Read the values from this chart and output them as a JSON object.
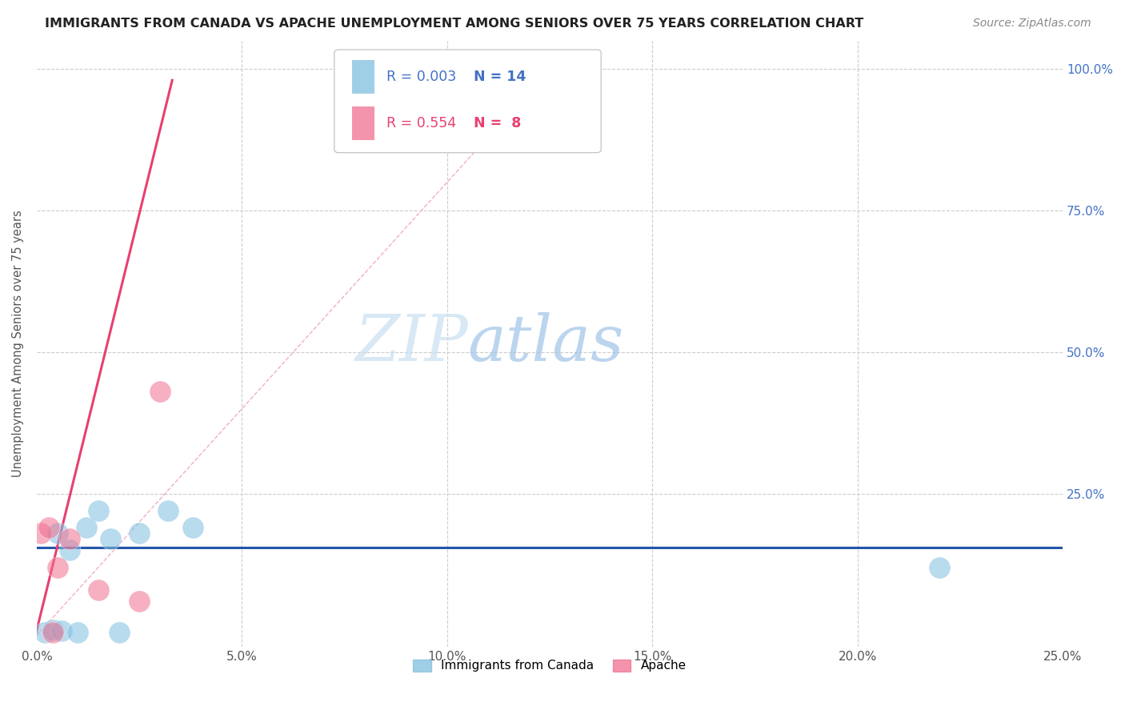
{
  "title": "IMMIGRANTS FROM CANADA VS APACHE UNEMPLOYMENT AMONG SENIORS OVER 75 YEARS CORRELATION CHART",
  "source": "Source: ZipAtlas.com",
  "ylabel_left": "Unemployment Among Seniors over 75 years",
  "xlim": [
    0.0,
    0.25
  ],
  "ylim": [
    -0.05,
    1.05
  ],
  "ydata_min": 0.0,
  "ydata_max": 1.0,
  "xtick_vals": [
    0.0,
    0.05,
    0.1,
    0.15,
    0.2,
    0.25
  ],
  "xticklabels": [
    "0.0%",
    "5.0%",
    "10.0%",
    "15.0%",
    "20.0%",
    "25.0%"
  ],
  "ytick_vals": [
    0.0,
    0.25,
    0.5,
    0.75,
    1.0
  ],
  "yticklabels_right": [
    "",
    "25.0%",
    "50.0%",
    "75.0%",
    "100.0%"
  ],
  "blue_scatter_x": [
    0.002,
    0.004,
    0.005,
    0.006,
    0.008,
    0.01,
    0.012,
    0.015,
    0.018,
    0.02,
    0.025,
    0.032,
    0.038,
    0.22
  ],
  "blue_scatter_y": [
    0.005,
    0.01,
    0.18,
    0.008,
    0.15,
    0.005,
    0.19,
    0.22,
    0.17,
    0.005,
    0.18,
    0.22,
    0.19,
    0.12
  ],
  "pink_scatter_x": [
    0.001,
    0.003,
    0.004,
    0.005,
    0.008,
    0.015,
    0.025,
    0.03
  ],
  "pink_scatter_y": [
    0.18,
    0.19,
    0.005,
    0.12,
    0.17,
    0.08,
    0.06,
    0.43
  ],
  "blue_hline_y": 0.155,
  "pink_line_x0": -0.001,
  "pink_line_y0": -0.02,
  "pink_line_x1": 0.033,
  "pink_line_y1": 0.98,
  "pink_trendline_x0": 0.0,
  "pink_trendline_y0": 0.0,
  "pink_trendline_x1": 0.125,
  "pink_trendline_y1": 1.0,
  "blue_color": "#7fbfdf",
  "pink_color": "#f07090",
  "blue_hline_color": "#2255aa",
  "pink_line_color": "#e84070",
  "pink_trendline_color": "#f0b0c0",
  "legend_R_blue": "0.003",
  "legend_N_blue": "14",
  "legend_R_pink": "0.554",
  "legend_N_pink": " 8",
  "legend_label_blue": "Immigrants from Canada",
  "legend_label_pink": "Apache",
  "marker_size": 380,
  "alpha": 0.55,
  "background_color": "#ffffff",
  "grid_color": "#cccccc",
  "grid_linestyle": "--",
  "title_fontsize": 11.5,
  "source_fontsize": 10,
  "tick_fontsize": 11,
  "ylabel_fontsize": 10.5
}
